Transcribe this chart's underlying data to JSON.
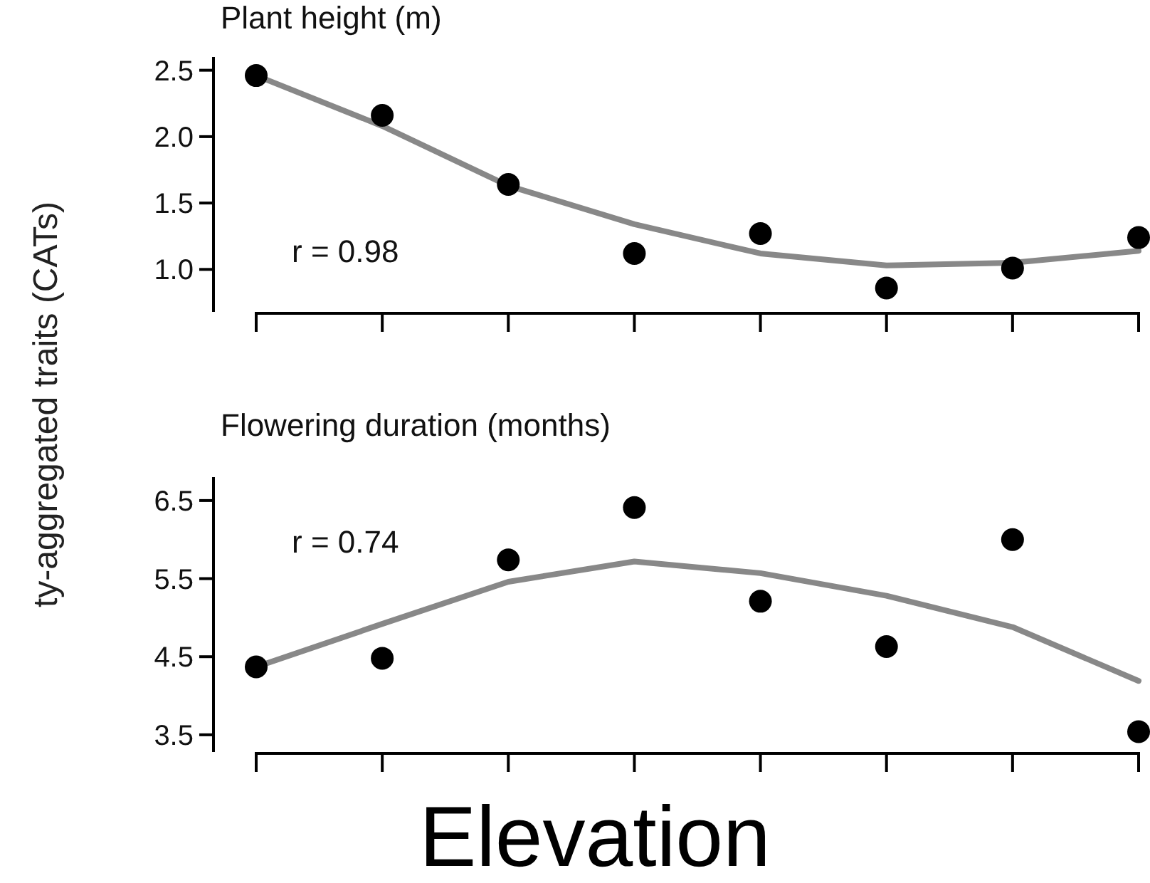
{
  "chart_data": [
    {
      "type": "scatter",
      "title": "Plant height (m)",
      "ylabel": "ty-aggregated traits (CATs)",
      "categories": [
        null,
        null,
        null,
        null,
        null,
        null,
        null,
        null
      ],
      "ylim": [
        0.68,
        2.6
      ],
      "yticks": [
        {
          "value": 1.0,
          "label": "1.0"
        },
        1.5,
        {
          "value": 2.0,
          "label": "2.0"
        },
        2.5
      ],
      "tick_labels": "y",
      "grid": false,
      "annotations": [
        "r = 0.98"
      ],
      "series": [
        {
          "color": "#000000",
          "marker": "circle",
          "values": [
            2.46,
            2.16,
            1.64,
            1.12,
            1.27,
            0.86,
            1.01,
            1.24
          ]
        },
        {
          "type": "line",
          "color": "#888888",
          "marker": "none",
          "line_style": "solid",
          "values": [
            2.46,
            2.08,
            1.63,
            1.34,
            1.12,
            1.03,
            1.05,
            1.14
          ]
        }
      ]
    },
    {
      "type": "scatter",
      "title": "Flowering duration (months)",
      "xlabel": "Elevation",
      "categories": [
        null,
        null,
        null,
        null,
        null,
        null,
        null,
        null
      ],
      "ylim": [
        3.28,
        6.8
      ],
      "yticks": [
        3.5,
        4.5,
        5.5,
        6.5
      ],
      "tick_labels": "y",
      "grid": false,
      "annotations": [
        "r = 0.74"
      ],
      "series": [
        {
          "color": "#000000",
          "marker": "circle",
          "values": [
            4.37,
            4.48,
            5.74,
            6.41,
            5.21,
            4.63,
            6.0,
            3.54
          ]
        },
        {
          "type": "line",
          "color": "#888888",
          "marker": "none",
          "line_style": "solid",
          "values": [
            4.37,
            4.92,
            5.46,
            5.72,
            5.57,
            5.28,
            4.88,
            4.19
          ]
        }
      ]
    }
  ]
}
